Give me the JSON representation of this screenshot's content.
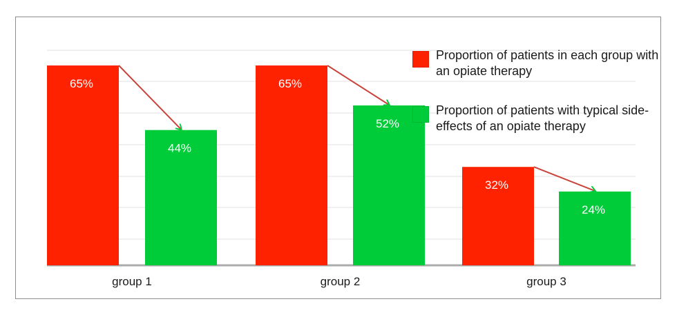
{
  "chart_data": {
    "type": "bar",
    "categories": [
      "group 1",
      "group 2",
      "group 3"
    ],
    "series": [
      {
        "name": "Proportion of patients in each group with an opiate therapy",
        "values": [
          65,
          65,
          32
        ],
        "color": "#ff2200"
      },
      {
        "name": "Proportion of patients with typical side-effects of an opiate therapy",
        "values": [
          44,
          52,
          24
        ],
        "color": "#00cc3a"
      }
    ],
    "data_labels": [
      [
        "65%",
        "65%",
        "32%"
      ],
      [
        "44%",
        "52%",
        "24%"
      ]
    ],
    "ylim": [
      0,
      65
    ],
    "grid": true,
    "legend_position": "top-right",
    "arrow_color": "#c8443a",
    "axis_color": "#aaaaaa",
    "grid_color": "#e0e0e0"
  }
}
